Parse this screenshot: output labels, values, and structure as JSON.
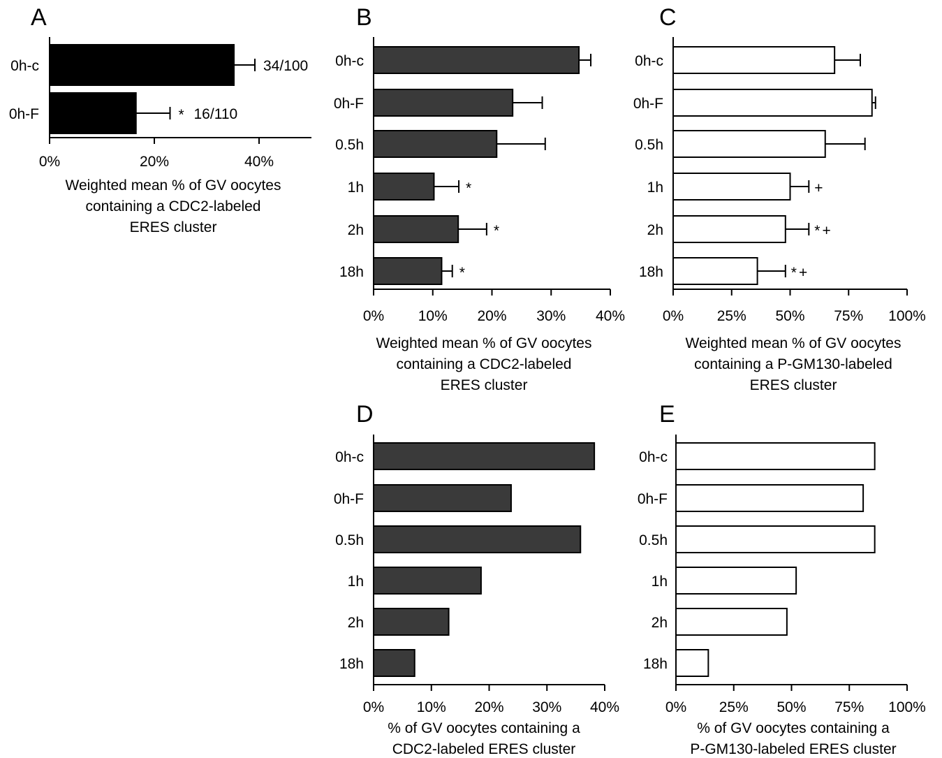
{
  "chart_data": [
    {
      "panel": "A",
      "type": "bar",
      "orientation": "horizontal",
      "categories": [
        "0h-c",
        "0h-F"
      ],
      "values": [
        35.2,
        16.5
      ],
      "errors": [
        4.0,
        6.5
      ],
      "annotations": [
        "34/100",
        "16/110"
      ],
      "markers": [
        "",
        "*"
      ],
      "xlim": [
        0,
        50
      ],
      "xticks": [
        "0%",
        "20%",
        "40%"
      ],
      "xtick_values": [
        0,
        20,
        40
      ],
      "xlabel": [
        "Weighted mean % of GV oocytes",
        "containing a CDC2-labeled",
        "ERES cluster"
      ],
      "bar_color": "#000000"
    },
    {
      "panel": "B",
      "type": "bar",
      "orientation": "horizontal",
      "categories": [
        "0h-c",
        "0h-F",
        "0.5h",
        "1h",
        "2h",
        "18h"
      ],
      "values": [
        34.7,
        23.5,
        20.8,
        10.2,
        14.3,
        11.5
      ],
      "errors": [
        2.0,
        5.0,
        8.2,
        4.2,
        4.8,
        1.8
      ],
      "markers": [
        "",
        "",
        "",
        "*",
        "*",
        "*"
      ],
      "xlim": [
        0,
        40
      ],
      "xticks": [
        "0%",
        "10%",
        "20%",
        "30%",
        "40%"
      ],
      "xtick_values": [
        0,
        10,
        20,
        30,
        40
      ],
      "xlabel": [
        "Weighted mean % of GV oocytes",
        "containing a CDC2-labeled",
        "ERES cluster"
      ],
      "bar_color": "#3a3a3a"
    },
    {
      "panel": "C",
      "type": "bar",
      "orientation": "horizontal",
      "categories": [
        "0h-c",
        "0h-F",
        "0.5h",
        "1h",
        "2h",
        "18h"
      ],
      "values": [
        69,
        85,
        65,
        50,
        48,
        36
      ],
      "errors": [
        11,
        1.5,
        17,
        8,
        10,
        12
      ],
      "markers": [
        "",
        "",
        "",
        "+",
        "*+",
        "*+"
      ],
      "xlim": [
        0,
        100
      ],
      "xticks": [
        "0%",
        "25%",
        "50%",
        "75%",
        "100%"
      ],
      "xtick_values": [
        0,
        25,
        50,
        75,
        100
      ],
      "xlabel": [
        "Weighted mean % of GV oocytes",
        "containing a P-GM130-labeled",
        "ERES cluster"
      ],
      "bar_color": "#ffffff"
    },
    {
      "panel": "D",
      "type": "bar",
      "orientation": "horizontal",
      "categories": [
        "0h-c",
        "0h-F",
        "0.5h",
        "1h",
        "2h",
        "18h"
      ],
      "values": [
        38.2,
        23.8,
        35.8,
        18.6,
        13.0,
        7.1
      ],
      "xlim": [
        0,
        40
      ],
      "xticks": [
        "0%",
        "10%",
        "20%",
        "30%",
        "40%"
      ],
      "xtick_values": [
        0,
        10,
        20,
        30,
        40
      ],
      "xlabel": [
        "% of GV oocytes containing a",
        "CDC2-labeled ERES cluster"
      ],
      "bar_color": "#3a3a3a"
    },
    {
      "panel": "E",
      "type": "bar",
      "orientation": "horizontal",
      "categories": [
        "0h-c",
        "0h-F",
        "0.5h",
        "1h",
        "2h",
        "18h"
      ],
      "values": [
        86,
        81,
        86,
        52,
        48,
        14
      ],
      "xlim": [
        0,
        100
      ],
      "xticks": [
        "0%",
        "25%",
        "50%",
        "75%",
        "100%"
      ],
      "xtick_values": [
        0,
        25,
        50,
        75,
        100
      ],
      "xlabel": [
        "% of GV oocytes containing a",
        "P-GM130-labeled ERES cluster"
      ],
      "bar_color": "#ffffff"
    }
  ]
}
